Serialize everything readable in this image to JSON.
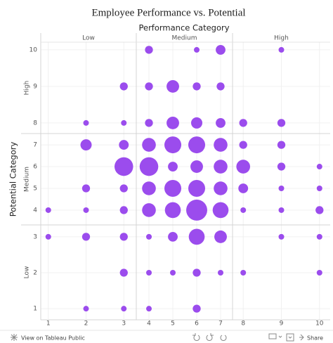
{
  "chart_data": {
    "type": "scatter",
    "title": "Employee Performance vs. Potential",
    "x_label": "Performance Category",
    "y_label": "Potential Category",
    "color": "#9b4ced",
    "grid": true,
    "x_panes": [
      {
        "label": "Low",
        "xlim": [
          0.8,
          3.33
        ],
        "xticks": [
          1,
          2,
          3
        ]
      },
      {
        "label": "Medium",
        "xlim": [
          3.47,
          7.5
        ],
        "xticks": [
          4,
          5,
          6,
          7
        ]
      },
      {
        "label": "High",
        "xlim": [
          7.72,
          10.28
        ],
        "xticks": [
          8,
          9,
          10
        ]
      }
    ],
    "y_panes": [
      {
        "label": "High",
        "ylim": [
          7.71,
          10.21
        ],
        "yticks": [
          8,
          9,
          10
        ]
      },
      {
        "label": "Medium",
        "ylim": [
          3.32,
          7.52
        ],
        "yticks": [
          4,
          5,
          6,
          7
        ]
      },
      {
        "label": "Low",
        "ylim": [
          0.69,
          3.33
        ],
        "yticks": [
          1,
          2,
          3
        ]
      }
    ],
    "x": [
      4,
      6,
      7,
      9,
      3,
      4,
      5,
      6,
      7,
      2,
      3,
      4,
      5,
      6,
      7,
      8,
      9,
      2,
      3,
      4,
      5,
      6,
      7,
      8,
      9,
      3,
      4,
      5,
      6,
      7,
      8,
      9,
      10,
      2,
      3,
      4,
      5,
      6,
      7,
      8,
      9,
      10,
      1,
      2,
      3,
      4,
      5,
      6,
      7,
      8,
      9,
      10,
      1,
      2,
      3,
      4,
      5,
      6,
      7,
      9,
      10,
      3,
      4,
      5,
      6,
      7,
      8,
      10,
      2,
      3,
      4,
      6
    ],
    "y": [
      10,
      10,
      10,
      10,
      9,
      9,
      9,
      9,
      9,
      8,
      8,
      8,
      8,
      8,
      8,
      8,
      8,
      7,
      7,
      7,
      7,
      7,
      7,
      7,
      7,
      6,
      6,
      6,
      6,
      6,
      6,
      6,
      6,
      5,
      5,
      5,
      5,
      5,
      5,
      5,
      5,
      5,
      4,
      4,
      4,
      4,
      4,
      4,
      4,
      4,
      4,
      4,
      3,
      3,
      3,
      3,
      3,
      3,
      3,
      3,
      3,
      2,
      2,
      2,
      2,
      2,
      2,
      2,
      1,
      1,
      1,
      1
    ],
    "sizes": [
      2,
      1,
      3,
      1,
      2,
      2,
      5,
      2,
      2,
      1,
      1,
      2,
      5,
      4,
      3,
      2,
      2,
      4,
      3,
      6,
      9,
      9,
      6,
      2,
      2,
      11,
      11,
      3,
      5,
      6,
      6,
      2,
      1,
      2,
      2,
      6,
      9,
      9,
      6,
      3,
      1,
      1,
      1,
      1,
      2,
      6,
      8,
      14,
      8,
      1,
      1,
      2,
      1,
      2,
      2,
      1,
      3,
      8,
      5,
      1,
      1,
      2,
      1,
      1,
      2,
      1,
      1,
      1,
      1,
      1,
      1,
      2
    ]
  },
  "footer": {
    "link": "View on Tableau Public",
    "share": "Share"
  }
}
